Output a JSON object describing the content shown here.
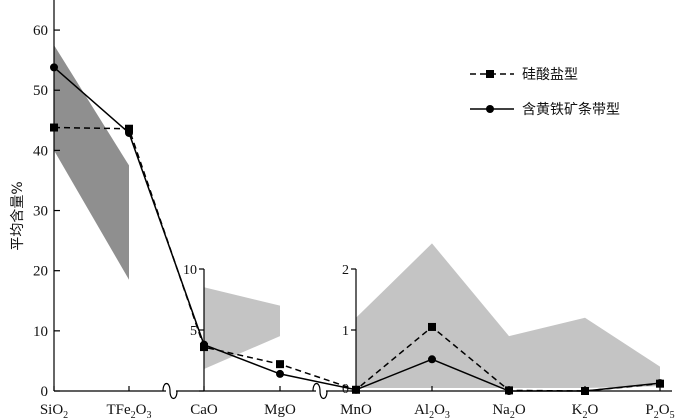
{
  "chart_data": {
    "type": "line",
    "ylabel": "平均含量%",
    "categories": [
      {
        "label": "SiO₂",
        "base": "SiO",
        "sub": "2"
      },
      {
        "label": "TFe₂O₃",
        "base": "TFe",
        "sub": "2",
        "tail": "O",
        "sub2": "3"
      },
      {
        "label": "CaO",
        "base": "CaO"
      },
      {
        "label": "MgO",
        "base": "MgO"
      },
      {
        "label": "MnO",
        "base": "MnO"
      },
      {
        "label": "Al₂O₃",
        "base": "Al",
        "sub": "2",
        "tail": "O",
        "sub2": "3"
      },
      {
        "label": "Na₂O",
        "base": "Na",
        "sub": "2",
        "tail": "O"
      },
      {
        "label": "K₂O",
        "base": "K",
        "sub": "2",
        "tail": "O"
      },
      {
        "label": "P₂O₅",
        "base": "P",
        "sub": "2",
        "tail": "O",
        "sub2": "5"
      }
    ],
    "main_axis": {
      "ylim": [
        0,
        65
      ],
      "ticks": [
        0,
        10,
        20,
        30,
        40,
        50,
        60
      ]
    },
    "inset_axes": [
      {
        "categories": [
          "CaO",
          "MgO"
        ],
        "ylim": [
          0,
          10
        ],
        "ticks": [
          0,
          5,
          10
        ]
      },
      {
        "categories": [
          "MnO",
          "Al₂O₃",
          "Na₂O",
          "K₂O",
          "P₂O₅"
        ],
        "ylim": [
          0,
          2
        ],
        "ticks": [
          0,
          1,
          2
        ]
      }
    ],
    "series": [
      {
        "name": "硅酸盐型",
        "style": "dashed",
        "marker": "square",
        "values": [
          43.8,
          43.6,
          3.6,
          2.2,
          0.02,
          1.05,
          0.01,
          0.0,
          0.12
        ]
      },
      {
        "name": "含黄铁矿条带型",
        "style": "solid",
        "marker": "circle",
        "values": [
          53.8,
          42.9,
          3.8,
          1.4,
          0.02,
          0.52,
          0.0,
          0.0,
          0.13
        ]
      }
    ],
    "ranges": [
      {
        "segment": "main",
        "categories": [
          "SiO₂",
          "TFe₂O₃"
        ],
        "low": [
          40.0,
          18.5
        ],
        "high": [
          57.5,
          37.5
        ]
      },
      {
        "segment": "inset1",
        "categories": [
          "CaO",
          "MgO"
        ],
        "low": [
          1.8,
          4.5
        ],
        "high": [
          8.5,
          7.0
        ]
      },
      {
        "segment": "inset2",
        "categories": [
          "MnO",
          "Al₂O₃",
          "Na₂O",
          "K₂O",
          "P₂O₅"
        ],
        "low": [
          0.05,
          0.05,
          0.05,
          0.05,
          0.08
        ],
        "high": [
          1.2,
          2.42,
          0.9,
          1.2,
          0.4
        ]
      }
    ],
    "legend_position": "top-right"
  },
  "colors": {
    "range_fill_main": "#8f8f8f",
    "range_fill_inset": "#c4c4c4",
    "line": "#000000"
  }
}
